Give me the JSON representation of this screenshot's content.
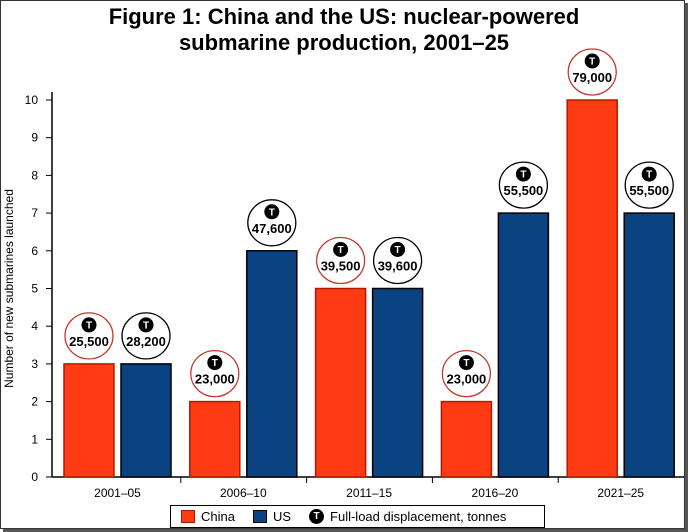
{
  "chart_data": {
    "type": "bar",
    "title": "Figure 1: China and the US: nuclear-powered submarine production, 2001–25",
    "title_lines": [
      "Figure 1: China and the US: nuclear-powered",
      "submarine production, 2001–25"
    ],
    "xlabel": "",
    "ylabel": "Number of new submarines launched",
    "ylim": [
      0,
      10
    ],
    "yticks": [
      0,
      1,
      2,
      3,
      4,
      5,
      6,
      7,
      8,
      9,
      10
    ],
    "categories": [
      "2001–05",
      "2006–10",
      "2011–15",
      "2016–20",
      "2021–25"
    ],
    "series": [
      {
        "name": "China",
        "color": "#ff3b14",
        "values": [
          3,
          2,
          5,
          2,
          10
        ],
        "displacement_labels": [
          "25,500",
          "23,000",
          "39,500",
          "23,000",
          "79,000"
        ]
      },
      {
        "name": "US",
        "color": "#0b4382",
        "values": [
          3,
          6,
          5,
          7,
          7
        ],
        "displacement_labels": [
          "28,200",
          "47,600",
          "39,600",
          "55,500",
          "55,500"
        ]
      }
    ],
    "annotation_marker": "T",
    "legend": {
      "items": [
        "China",
        "US",
        "Full-load displacement, tonnes"
      ],
      "placement": "bottom"
    },
    "grid": false
  }
}
